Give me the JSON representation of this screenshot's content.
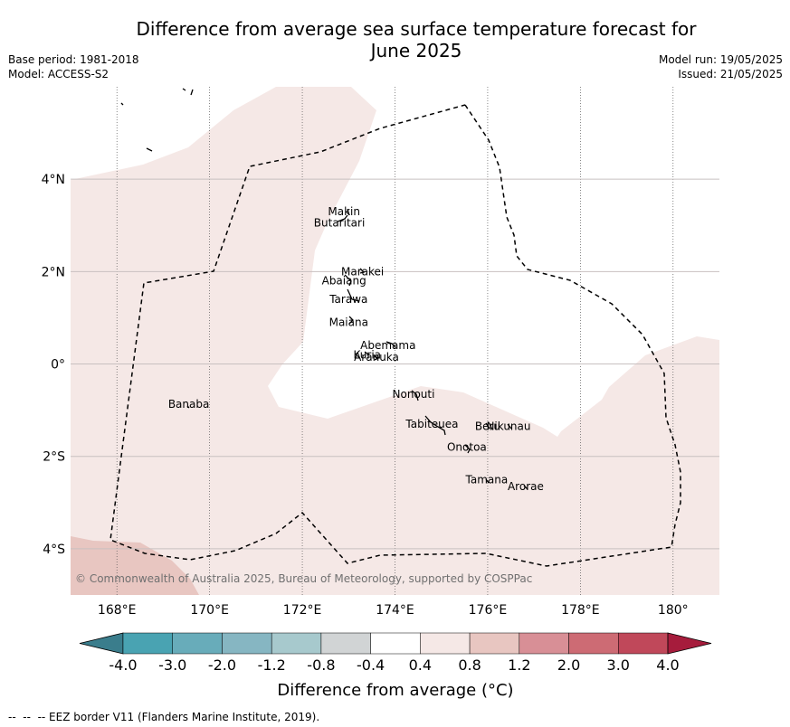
{
  "header": {
    "title_line1": "Difference from average sea surface temperature forecast for",
    "title_line2": "June 2025",
    "base_period": "Base period: 1981-2018",
    "model": "Model: ACCESS-S2",
    "model_run": "Model run: 19/05/2025",
    "issued": "Issued: 21/05/2025"
  },
  "map": {
    "lon_range": [
      167,
      181
    ],
    "lat_range": [
      -5,
      6
    ],
    "lon_ticks": [
      {
        "value": 168,
        "label": "168°E"
      },
      {
        "value": 170,
        "label": "170°E"
      },
      {
        "value": 172,
        "label": "172°E"
      },
      {
        "value": 174,
        "label": "174°E"
      },
      {
        "value": 176,
        "label": "176°E"
      },
      {
        "value": 178,
        "label": "178°E"
      },
      {
        "value": 180,
        "label": "180°"
      }
    ],
    "lat_ticks": [
      {
        "value": 4,
        "label": "4°N"
      },
      {
        "value": 2,
        "label": "2°N"
      },
      {
        "value": 0,
        "label": "0°"
      },
      {
        "value": -2,
        "label": "2°S"
      },
      {
        "value": -4,
        "label": "4°S"
      }
    ],
    "places": [
      {
        "name": "Makin",
        "lon": 172.9,
        "lat": 3.3
      },
      {
        "name": "Butaritari",
        "lon": 172.8,
        "lat": 3.05
      },
      {
        "name": "Marakei",
        "lon": 173.3,
        "lat": 2.0
      },
      {
        "name": "Abaiang",
        "lon": 172.9,
        "lat": 1.8
      },
      {
        "name": "Tarawa",
        "lon": 173.0,
        "lat": 1.4
      },
      {
        "name": "Maiana",
        "lon": 173.0,
        "lat": 0.9
      },
      {
        "name": "Abemama",
        "lon": 173.85,
        "lat": 0.4
      },
      {
        "name": "Kuria",
        "lon": 173.4,
        "lat": 0.2
      },
      {
        "name": "Aranuka",
        "lon": 173.6,
        "lat": 0.15
      },
      {
        "name": "Nonouti",
        "lon": 174.4,
        "lat": -0.65
      },
      {
        "name": "Banaba",
        "lon": 169.55,
        "lat": -0.87
      },
      {
        "name": "Tabiteuea",
        "lon": 174.8,
        "lat": -1.3
      },
      {
        "name": "Beru",
        "lon": 176.0,
        "lat": -1.35
      },
      {
        "name": "Nikunau",
        "lon": 176.45,
        "lat": -1.35
      },
      {
        "name": "Onotoa",
        "lon": 175.55,
        "lat": -1.8
      },
      {
        "name": "Tamana",
        "lon": 175.98,
        "lat": -2.5
      },
      {
        "name": "Arorae",
        "lon": 176.82,
        "lat": -2.65
      }
    ],
    "copyright": "© Commonwealth of Australia 2025, Bureau of Meteorology, supported by COSPPac"
  },
  "colorbar": {
    "title": "Difference from average (°C)",
    "ticks": [
      "-4.0",
      "-3.0",
      "-2.0",
      "-1.2",
      "-0.8",
      "-0.4",
      "0.4",
      "0.8",
      "1.2",
      "2.0",
      "3.0",
      "4.0"
    ],
    "colors": [
      "#3a7d8c",
      "#49a3b2",
      "#68acba",
      "#86b6c2",
      "#a7c9cd",
      "#d1d4d5",
      "#ffffff",
      "#f5e8e6",
      "#e8c6c1",
      "#d88f96",
      "#cd6b74",
      "#c0485a",
      "#a61c3c"
    ]
  },
  "fill_colors": {
    "anomaly_0_4_to_0_8": "#f5e8e6",
    "anomaly_0_8_to_1_2": "#e8c6c1"
  },
  "footer": {
    "legend": "--  --  -- EEZ border V11 (Flanders Marine Institute, 2019)."
  }
}
